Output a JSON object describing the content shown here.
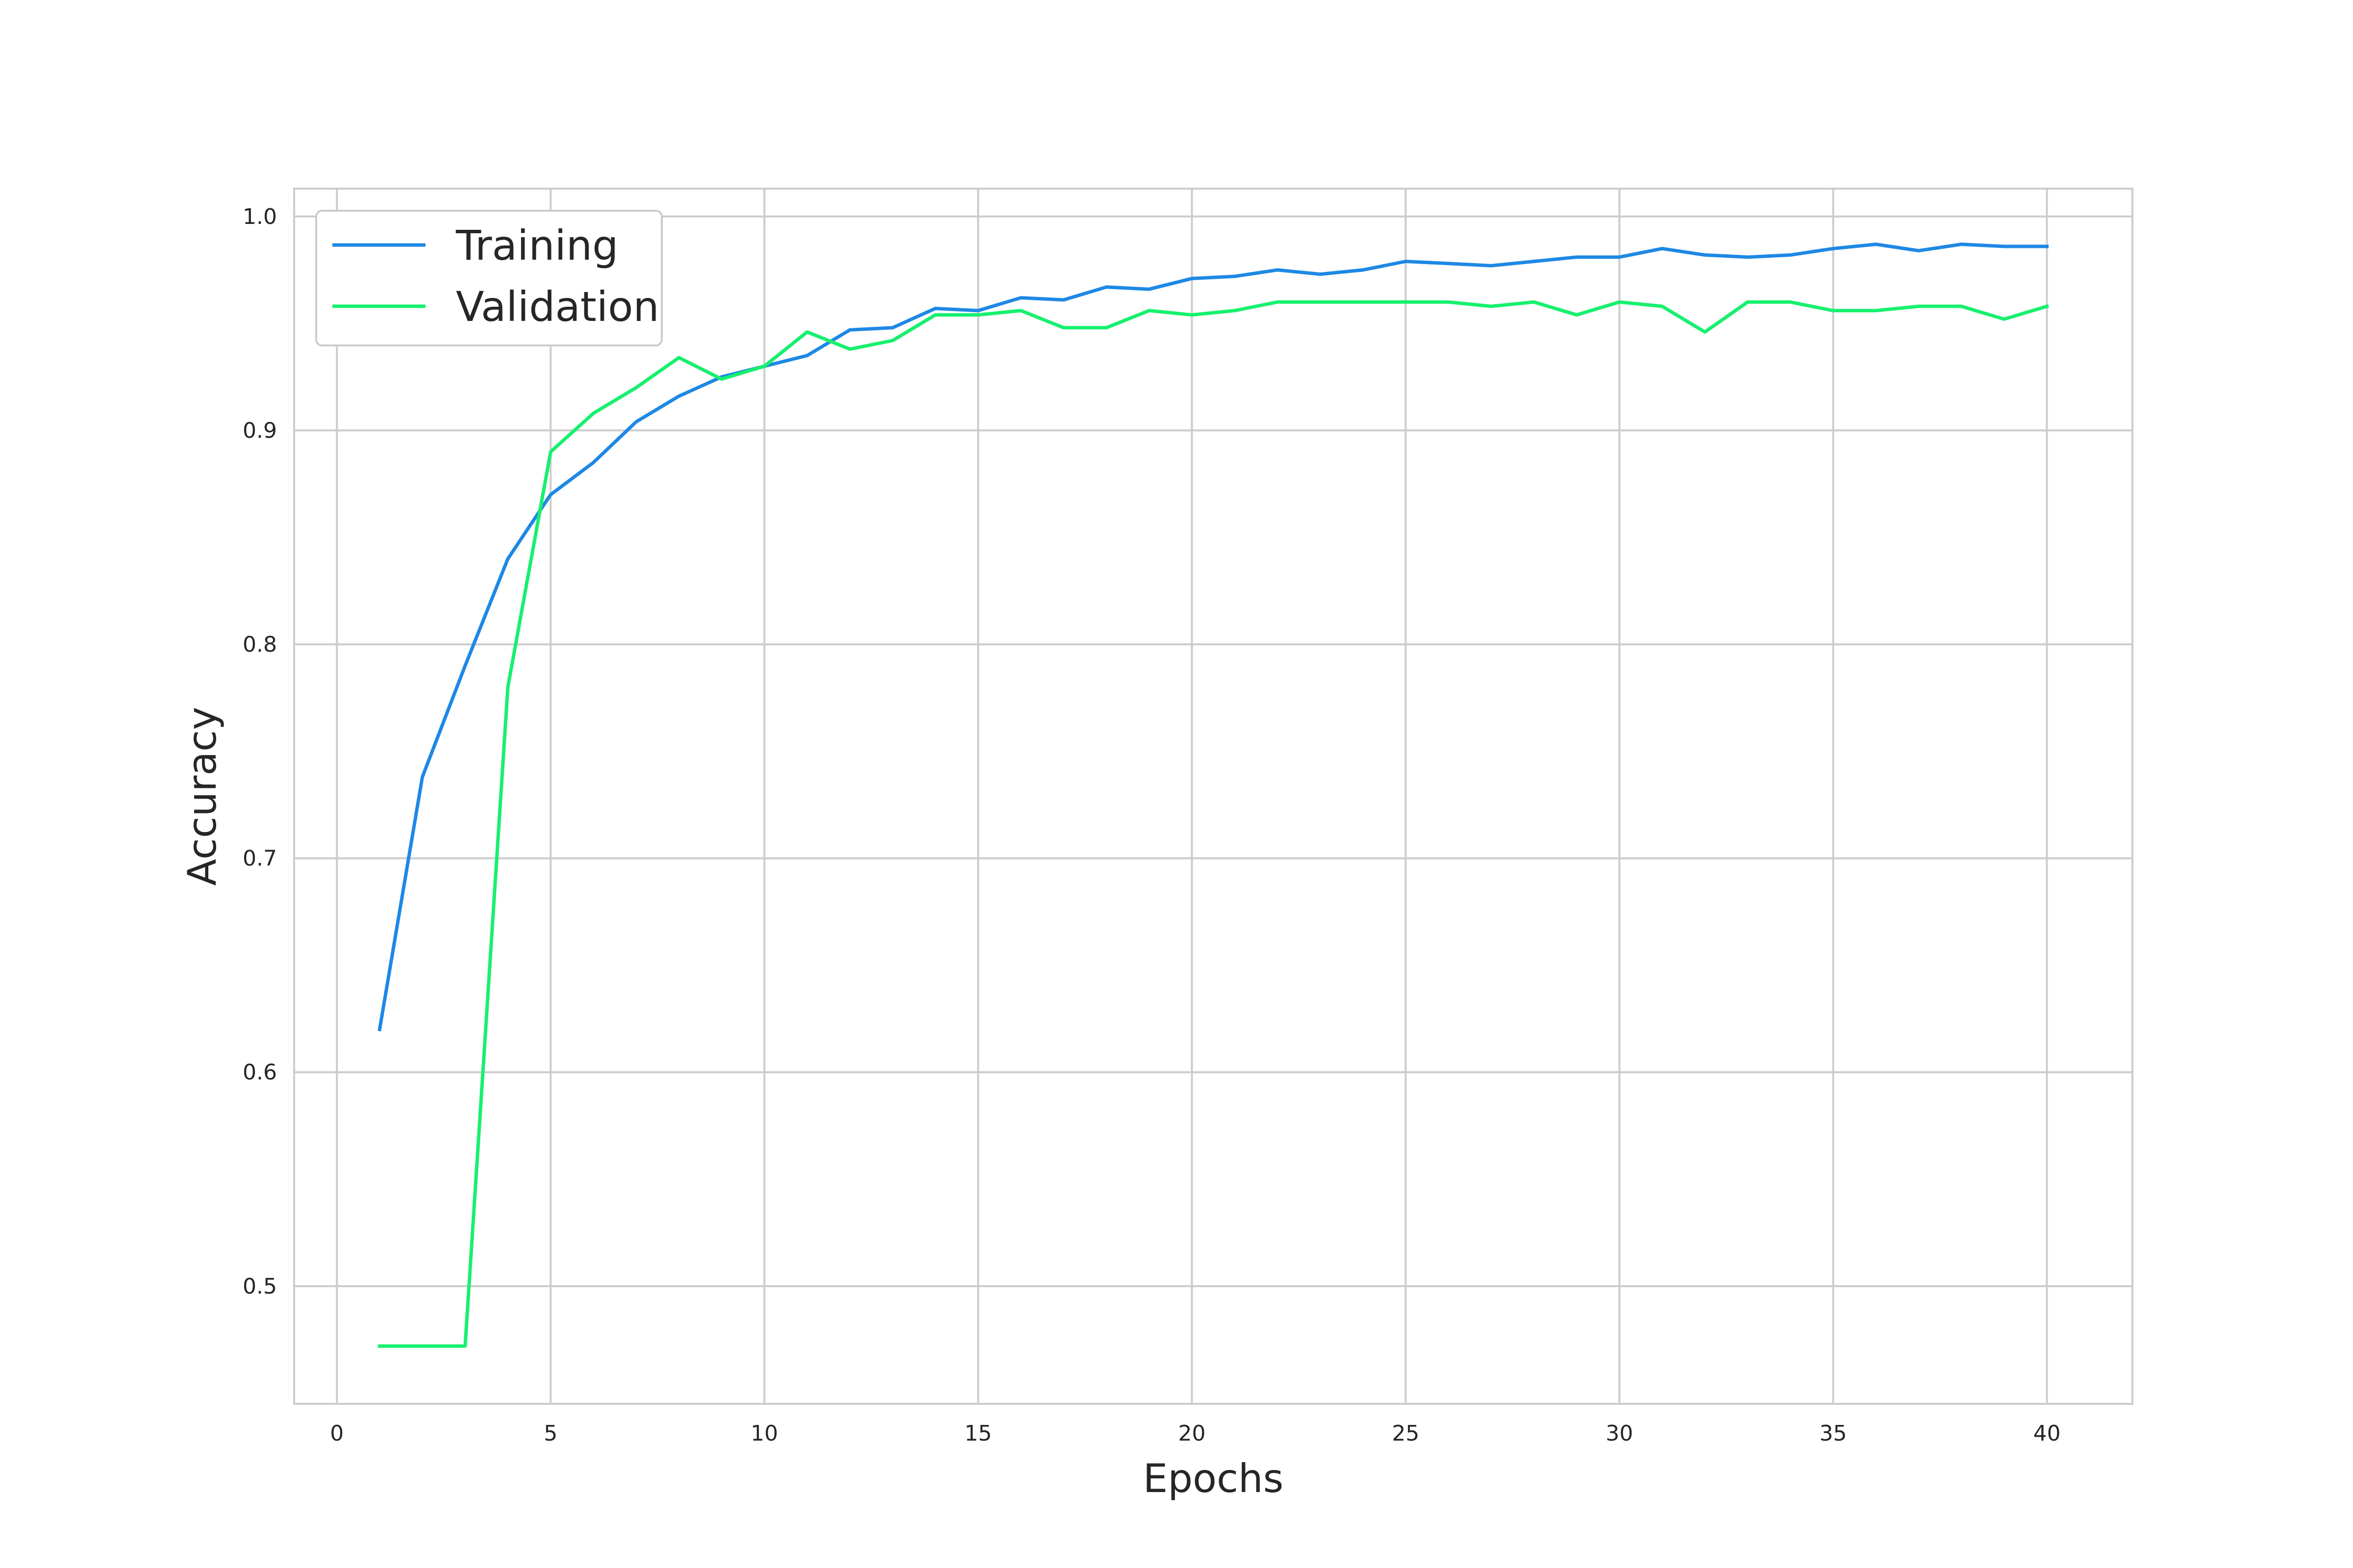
{
  "chart_data": {
    "type": "line",
    "xlabel": "Epochs",
    "ylabel": "Accuracy",
    "xlim": [
      -1,
      42
    ],
    "ylim": [
      0.445,
      1.013
    ],
    "xticks": [
      0,
      5,
      10,
      15,
      20,
      25,
      30,
      35,
      40
    ],
    "yticks": [
      0.5,
      0.6,
      0.7,
      0.8,
      0.9,
      1.0
    ],
    "xtick_labels": [
      "0",
      "5",
      "10",
      "15",
      "20",
      "25",
      "30",
      "35",
      "40"
    ],
    "ytick_labels": [
      "0.5",
      "0.6",
      "0.7",
      "0.8",
      "0.9",
      "1.0"
    ],
    "grid": true,
    "legend_position": "top-left",
    "x": [
      1,
      2,
      3,
      4,
      5,
      6,
      7,
      8,
      9,
      10,
      11,
      12,
      13,
      14,
      15,
      16,
      17,
      18,
      19,
      20,
      21,
      22,
      23,
      24,
      25,
      26,
      27,
      28,
      29,
      30,
      31,
      32,
      33,
      34,
      35,
      36,
      37,
      38,
      39,
      40
    ],
    "series": [
      {
        "name": "Training",
        "color": "#1e88e5",
        "values": [
          0.62,
          0.738,
          0.79,
          0.84,
          0.87,
          0.885,
          0.904,
          0.916,
          0.925,
          0.93,
          0.935,
          0.947,
          0.948,
          0.957,
          0.956,
          0.962,
          0.961,
          0.967,
          0.966,
          0.971,
          0.972,
          0.975,
          0.973,
          0.975,
          0.979,
          0.978,
          0.977,
          0.979,
          0.981,
          0.981,
          0.985,
          0.982,
          0.981,
          0.982,
          0.985,
          0.987,
          0.984,
          0.987,
          0.986,
          0.986
        ]
      },
      {
        "name": "Validation",
        "color": "#17f06e",
        "values": [
          0.472,
          0.472,
          0.472,
          0.78,
          0.89,
          0.908,
          0.92,
          0.934,
          0.924,
          0.93,
          0.946,
          0.938,
          0.942,
          0.954,
          0.954,
          0.956,
          0.948,
          0.948,
          0.956,
          0.954,
          0.956,
          0.96,
          0.96,
          0.96,
          0.96,
          0.96,
          0.958,
          0.96,
          0.954,
          0.96,
          0.958,
          0.946,
          0.96,
          0.96,
          0.956,
          0.956,
          0.958,
          0.958,
          0.952,
          0.958
        ]
      }
    ]
  }
}
